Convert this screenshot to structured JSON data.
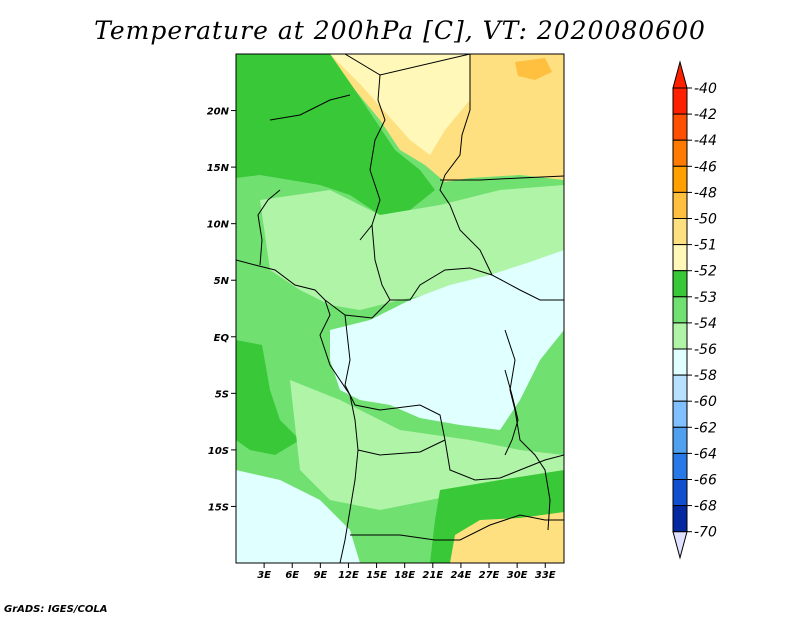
{
  "title": "Temperature at 200hPa [C], VT: 2020080600",
  "credit": "GrADS: IGES/COLA",
  "map": {
    "lon_labels": [
      "3E",
      "6E",
      "9E",
      "12E",
      "15E",
      "18E",
      "21E",
      "24E",
      "27E",
      "30E",
      "33E"
    ],
    "lat_labels": [
      "20N",
      "15N",
      "10N",
      "5N",
      "EQ",
      "5S",
      "10S",
      "15S"
    ],
    "lon_range": [
      0,
      35
    ],
    "lat_range": [
      -20,
      25
    ]
  },
  "colorbar": {
    "levels": [
      "-40",
      "-42",
      "-44",
      "-46",
      "-48",
      "-50",
      "-51",
      "-52",
      "-53",
      "-54",
      "-56",
      "-58",
      "-60",
      "-62",
      "-64",
      "-66",
      "-68",
      "-70"
    ],
    "colors": [
      "#ff2000",
      "#ff5000",
      "#ff7a00",
      "#ffa000",
      "#ffc040",
      "#ffe080",
      "#fff8b8",
      "#38c838",
      "#70e070",
      "#b0f4a8",
      "#e0ffff",
      "#b8e0ff",
      "#80c0ff",
      "#50a0f0",
      "#2878e8",
      "#1050d0",
      "#0428a0",
      "#000060"
    ],
    "top_arrow_color": "#ff2000",
    "bottom_arrow_color": "#e0e0ff"
  }
}
